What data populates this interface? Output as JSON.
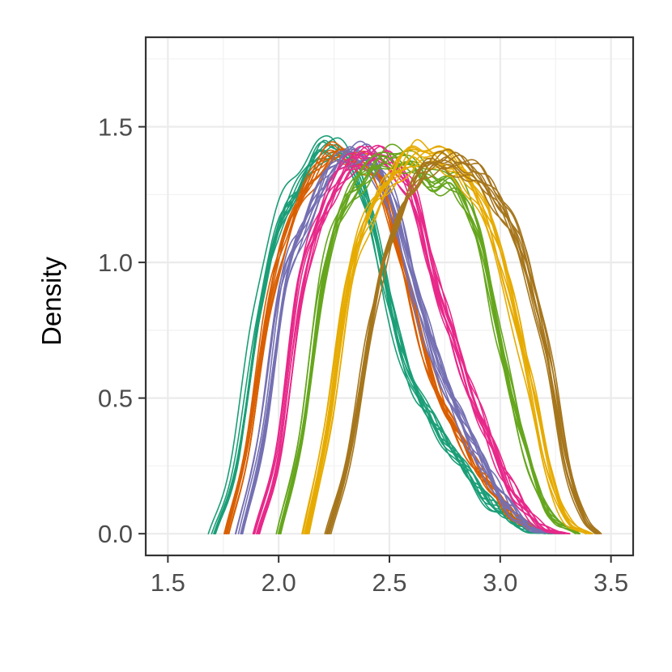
{
  "chart_data": {
    "type": "line",
    "title": "",
    "xlabel": "",
    "ylabel": "Density",
    "xlim": [
      1.4,
      3.6
    ],
    "ylim": [
      -0.08,
      1.83
    ],
    "x_major_ticks": [
      1.5,
      2.0,
      2.5,
      3.0,
      3.5
    ],
    "x_tick_labels": [
      "1.5",
      "2.0",
      "2.5",
      "3.0",
      "3.5"
    ],
    "y_major_ticks": [
      0.0,
      0.5,
      1.0,
      1.5
    ],
    "y_tick_labels": [
      "0.0",
      "0.5",
      "1.0",
      "1.5"
    ],
    "x_minor_ticks": [
      1.75,
      2.25,
      2.75,
      3.25
    ],
    "y_minor_ticks": [
      0.25,
      0.75,
      1.25,
      1.75
    ],
    "grid": true,
    "legend": "none",
    "curves_per_group": 10,
    "series": [
      {
        "color": "#1B9E77",
        "start": 1.7,
        "end": 3.22,
        "peak_x": 2.22,
        "peak": 1.43,
        "values_x": [
          1.7,
          1.8,
          1.9,
          2.0,
          2.1,
          2.2,
          2.3,
          2.4,
          2.5,
          2.6,
          2.7,
          2.8,
          2.9,
          3.0,
          3.1,
          3.22
        ],
        "values_y": [
          0.0,
          0.25,
          0.8,
          1.15,
          1.3,
          1.42,
          1.38,
          1.2,
          0.82,
          0.55,
          0.4,
          0.28,
          0.16,
          0.08,
          0.02,
          0.0
        ]
      },
      {
        "color": "#D95F02",
        "start": 1.76,
        "end": 3.26,
        "peak_x": 2.25,
        "peak": 1.4,
        "values_x": [
          1.76,
          1.85,
          1.95,
          2.05,
          2.15,
          2.25,
          2.35,
          2.45,
          2.55,
          2.65,
          2.75,
          2.85,
          2.95,
          3.05,
          3.15,
          3.26
        ],
        "values_y": [
          0.0,
          0.3,
          0.85,
          1.15,
          1.32,
          1.4,
          1.38,
          1.3,
          1.0,
          0.68,
          0.45,
          0.3,
          0.17,
          0.07,
          0.02,
          0.0
        ]
      },
      {
        "color": "#7570B3",
        "start": 1.82,
        "end": 3.26,
        "peak_x": 2.33,
        "peak": 1.4,
        "values_x": [
          1.82,
          1.92,
          2.02,
          2.12,
          2.22,
          2.32,
          2.42,
          2.52,
          2.62,
          2.72,
          2.82,
          2.92,
          3.02,
          3.12,
          3.26
        ],
        "values_y": [
          0.0,
          0.35,
          0.92,
          1.15,
          1.32,
          1.4,
          1.37,
          1.2,
          0.88,
          0.62,
          0.42,
          0.26,
          0.12,
          0.03,
          0.0
        ]
      },
      {
        "color": "#E7298A",
        "start": 1.9,
        "end": 3.3,
        "peak_x": 2.38,
        "peak": 1.39,
        "values_x": [
          1.9,
          2.0,
          2.1,
          2.2,
          2.3,
          2.4,
          2.5,
          2.6,
          2.7,
          2.8,
          2.9,
          3.0,
          3.1,
          3.2,
          3.3
        ],
        "values_y": [
          0.0,
          0.3,
          0.9,
          1.18,
          1.33,
          1.39,
          1.36,
          1.25,
          0.95,
          0.68,
          0.45,
          0.25,
          0.1,
          0.02,
          0.0
        ]
      },
      {
        "color": "#66A61E",
        "start": 2.0,
        "end": 3.35,
        "peak_x": 2.5,
        "peak": 1.39,
        "values_x": [
          2.0,
          2.1,
          2.2,
          2.3,
          2.4,
          2.5,
          2.6,
          2.7,
          2.8,
          2.9,
          3.0,
          3.1,
          3.2,
          3.35
        ],
        "values_y": [
          0.0,
          0.35,
          0.95,
          1.22,
          1.33,
          1.39,
          1.36,
          1.3,
          1.28,
          1.1,
          0.7,
          0.35,
          0.1,
          0.0
        ]
      },
      {
        "color": "#E6AB02",
        "start": 2.12,
        "end": 3.4,
        "peak_x": 2.65,
        "peak": 1.4,
        "values_x": [
          2.12,
          2.22,
          2.32,
          2.42,
          2.52,
          2.62,
          2.72,
          2.82,
          2.92,
          3.02,
          3.12,
          3.22,
          3.3,
          3.4
        ],
        "values_y": [
          0.0,
          0.4,
          0.95,
          1.2,
          1.32,
          1.4,
          1.38,
          1.33,
          1.2,
          0.95,
          0.6,
          0.22,
          0.05,
          0.0
        ]
      },
      {
        "color": "#A6761D",
        "start": 2.22,
        "end": 3.44,
        "peak_x": 2.78,
        "peak": 1.38,
        "values_x": [
          2.22,
          2.32,
          2.42,
          2.52,
          2.62,
          2.72,
          2.82,
          2.92,
          3.02,
          3.12,
          3.22,
          3.3,
          3.38,
          3.44
        ],
        "values_y": [
          0.0,
          0.3,
          0.8,
          1.12,
          1.3,
          1.37,
          1.36,
          1.3,
          1.18,
          0.98,
          0.62,
          0.25,
          0.05,
          0.0
        ]
      }
    ]
  }
}
